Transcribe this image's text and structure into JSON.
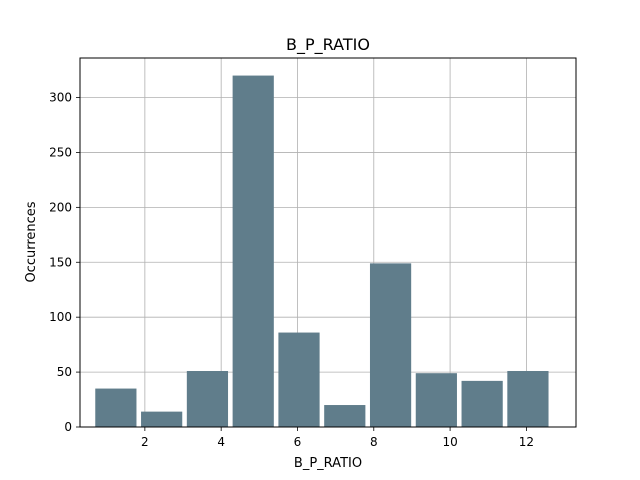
{
  "chart_data": {
    "type": "bar",
    "title": "B_P_RATIO",
    "xlabel": "B_P_RATIO",
    "ylabel": "Occurrences",
    "x_ticks": [
      "2",
      "4",
      "6",
      "8",
      "10",
      "12"
    ],
    "y_ticks": [
      "0",
      "50",
      "100",
      "150",
      "200",
      "250",
      "300"
    ],
    "xlim": [
      0.3,
      13.3
    ],
    "ylim": [
      0,
      336
    ],
    "grid": true,
    "bar_color": "#607d8b",
    "bins": [
      {
        "start": 0.7,
        "end": 1.78,
        "value": 35
      },
      {
        "start": 1.9,
        "end": 2.98,
        "value": 14
      },
      {
        "start": 3.1,
        "end": 4.18,
        "value": 51
      },
      {
        "start": 4.3,
        "end": 5.38,
        "value": 320
      },
      {
        "start": 5.5,
        "end": 6.58,
        "value": 86
      },
      {
        "start": 6.7,
        "end": 7.78,
        "value": 20
      },
      {
        "start": 7.9,
        "end": 8.98,
        "value": 149
      },
      {
        "start": 9.1,
        "end": 10.18,
        "value": 49
      },
      {
        "start": 10.3,
        "end": 11.38,
        "value": 42
      },
      {
        "start": 11.5,
        "end": 12.58,
        "value": 51
      }
    ]
  }
}
